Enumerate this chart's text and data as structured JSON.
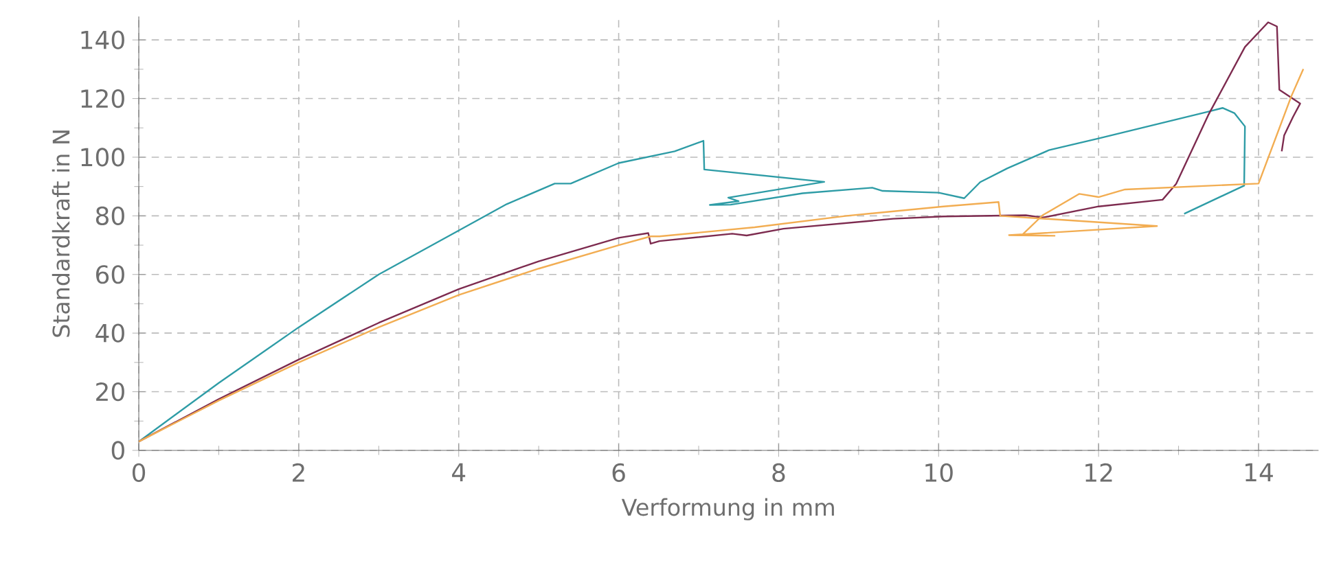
{
  "chart_data": {
    "type": "line",
    "xlabel": "Verformung in mm",
    "ylabel": "Standardkraft in N",
    "xlim": [
      0,
      14.75
    ],
    "ylim": [
      0,
      148
    ],
    "xticks": [
      0,
      2,
      4,
      6,
      8,
      10,
      12,
      14
    ],
    "yticks": [
      0,
      20,
      40,
      60,
      80,
      100,
      120,
      140
    ],
    "grid": true,
    "marker": "none",
    "line_style": "solid",
    "series": [
      {
        "color": "#2e9ca6",
        "x": [
          0,
          1,
          2,
          3,
          4,
          4.6,
          5.2,
          5.4,
          6,
          6.7,
          7.06,
          7.07,
          8.57,
          7.37,
          7.5,
          7.14,
          7.4,
          8.3,
          9.17,
          9.3,
          10.0,
          10.32,
          10.52,
          10.86,
          11.38,
          12.0,
          12.69,
          13.38,
          13.55,
          13.7,
          13.83,
          13.82,
          13.07
        ],
        "values": [
          3,
          23,
          42,
          60,
          75,
          84,
          91,
          91,
          98,
          102,
          105.6,
          95.8,
          91.6,
          86.2,
          85,
          83.7,
          83.8,
          87.7,
          89.6,
          88.5,
          87.9,
          86,
          91.5,
          96.2,
          102.4,
          106.4,
          111,
          115.6,
          116.8,
          115,
          110.5,
          90.3,
          80.7
        ]
      },
      {
        "color": "#7d2b4f",
        "x": [
          0,
          1,
          2,
          3,
          4,
          5,
          6,
          6.37,
          6.4,
          6.51,
          7.42,
          7.6,
          8.06,
          9.43,
          10.06,
          11.09,
          11.3,
          12.0,
          12.8,
          12.97,
          13.37,
          13.83,
          14.12,
          14.23,
          14.26,
          14.52,
          14.43,
          14.32,
          14.29
        ],
        "values": [
          3,
          17.5,
          31,
          43.5,
          55,
          64.5,
          72.5,
          74.1,
          70.5,
          71.4,
          73.9,
          73.3,
          75.6,
          79,
          79.8,
          80.2,
          79.4,
          83.2,
          85.5,
          90.9,
          114.3,
          137.6,
          146,
          144.6,
          123,
          118.3,
          113.7,
          107.4,
          102
        ]
      },
      {
        "color": "#f2ad52",
        "x": [
          0,
          1,
          2,
          3,
          4,
          5,
          6,
          6.4,
          6.51,
          7.7,
          8.85,
          10.06,
          10.75,
          10.77,
          12.73,
          10.88,
          11.45,
          11.04,
          11.3,
          11.76,
          12.0,
          12.33,
          14.0,
          14.41,
          14.56
        ],
        "values": [
          3,
          17,
          30,
          42,
          53,
          62,
          70,
          73,
          73,
          76.1,
          80,
          83.2,
          84.7,
          80,
          76.5,
          73.4,
          73.2,
          73.4,
          80.2,
          87.5,
          86.4,
          89,
          91,
          120.8,
          130.1
        ]
      }
    ]
  }
}
